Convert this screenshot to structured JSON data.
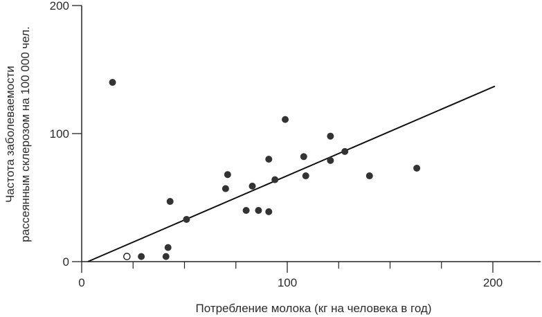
{
  "chart_data": {
    "type": "scatter",
    "title": "",
    "xlabel": "Потребление молока (кг на человека в год)",
    "ylabel_line1": "Частота заболеваемости",
    "ylabel_line2": "рассеянным склерозом на 100 000 чел.",
    "xlim": [
      0,
      225
    ],
    "ylim": [
      0,
      200
    ],
    "x_ticks": [
      0,
      100,
      200
    ],
    "x_minor_ticks": [
      25,
      50,
      75,
      125,
      150,
      175,
      225
    ],
    "y_ticks": [
      0,
      100,
      200
    ],
    "y_tick_labels": [
      "0",
      "100",
      "200"
    ],
    "x_tick_labels": [
      "0",
      "100",
      "200"
    ],
    "grid": false,
    "legend": "none",
    "colors": {
      "filled_point": "#333333",
      "open_point": "#ffffff",
      "line": "#111111",
      "axis": "#222222"
    },
    "series": [
      {
        "kind": "filled",
        "points": [
          [
            15,
            140
          ],
          [
            29,
            4
          ],
          [
            41,
            4
          ],
          [
            42,
            11
          ],
          [
            43,
            47
          ],
          [
            51,
            33
          ],
          [
            70,
            57
          ],
          [
            71,
            68
          ],
          [
            80,
            40
          ],
          [
            83,
            59
          ],
          [
            86,
            40
          ],
          [
            91,
            80
          ],
          [
            91,
            39
          ],
          [
            94,
            64
          ],
          [
            99,
            111
          ],
          [
            108,
            82
          ],
          [
            109,
            67
          ],
          [
            121,
            79
          ],
          [
            121,
            98
          ],
          [
            128,
            86
          ],
          [
            140,
            67
          ],
          [
            163,
            73
          ]
        ]
      },
      {
        "kind": "open",
        "points": [
          [
            22,
            4
          ]
        ]
      }
    ],
    "trend_line": {
      "x": [
        3,
        201
      ],
      "y": [
        0,
        137
      ]
    }
  }
}
